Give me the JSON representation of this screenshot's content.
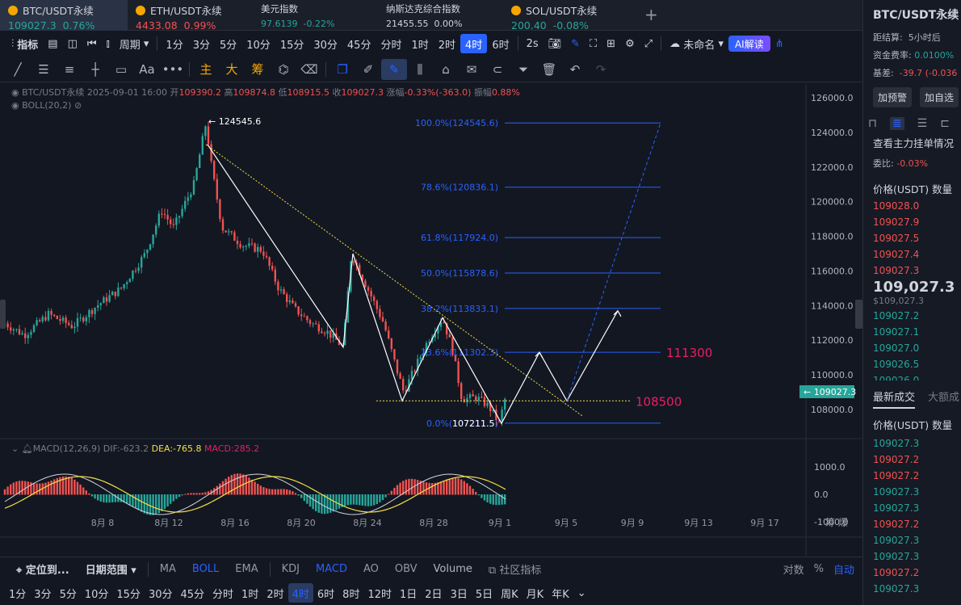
{
  "tickers": [
    {
      "name": "BTC/USDT永续",
      "price": "109027.3",
      "change": "0.76%",
      "dir": "up",
      "coin_color": "#f7a600"
    },
    {
      "name": "ETH/USDT永续",
      "price": "4433.08",
      "change": "0.99%",
      "dir": "dn",
      "coin_color": "#f7a600"
    },
    {
      "name": "美元指数",
      "price": "97.6139",
      "change": "-0.22%",
      "dir": "up",
      "coin_color": ""
    },
    {
      "name": "纳斯达克综合指数",
      "price": "21455.55",
      "change": "0.00%",
      "dir": "ne",
      "coin_color": ""
    },
    {
      "name": "SOL/USDT永续",
      "price": "200.40",
      "change": "-0.08%",
      "dir": "up",
      "coin_color": "#f7a600"
    }
  ],
  "add_tab": "+",
  "toolbar": {
    "indicators": "指标",
    "period_label": "周期",
    "timeframes": [
      "1分",
      "3分",
      "5分",
      "10分",
      "15分",
      "30分",
      "45分",
      "分时",
      "1时",
      "2时",
      "4时",
      "6时"
    ],
    "selected_timeframe": "4时",
    "interval": "2s",
    "layout_name": "未命名",
    "ai_label": "AI解读"
  },
  "drawtools": {
    "main": "主",
    "big": "大",
    "chips": "筹"
  },
  "legend": {
    "symbol": "BTC/USDT永续",
    "datetime": "2025-09-01 16:00",
    "open_label": "开",
    "open": "109390.2",
    "high_label": "高",
    "high": "109874.8",
    "low_label": "低",
    "low": "108915.5",
    "close_label": "收",
    "close": "109027.3",
    "change_label": "涨幅",
    "change": "-0.33%(-363.0)",
    "amp_label": "振幅",
    "amp": "0.88%",
    "boll": "BOLL(20,2)"
  },
  "macd_legend": {
    "name": "MACD(12,26,9)",
    "dif": "DIF:-623.2",
    "dea": "DEA:-765.8",
    "macd": "MACD:285.2"
  },
  "price_axis": [
    "126000.0",
    "124000.0",
    "122000.0",
    "120000.0",
    "118000.0",
    "116000.0",
    "114000.0",
    "112000.0",
    "110000.0",
    "108000.0"
  ],
  "current_price_tag": "109027.3",
  "macd_axis": [
    "1000.0",
    "0.0",
    "-1000.0"
  ],
  "date_axis": [
    "8月 8",
    "8月 12",
    "8月 16",
    "8月 20",
    "8月 24",
    "8月 28",
    "9月 1",
    "9月 5",
    "9月 9",
    "9月 13",
    "9月 17"
  ],
  "axis_corner": "筹 爆",
  "annotations": {
    "high_label": "← 124545.6",
    "low_label": "107211.5",
    "level_111300": "111300",
    "level_108500": "108500"
  },
  "fib_levels": [
    {
      "label": "100.0%(124545.6)",
      "price": 124545.6
    },
    {
      "label": "78.6%(120836.1)",
      "price": 120836.1
    },
    {
      "label": "61.8%(117924.0)",
      "price": 117924.0
    },
    {
      "label": "50.0%(115878.6)",
      "price": 115878.6
    },
    {
      "label": "38.2%(113833.1)",
      "price": 113833.1
    },
    {
      "label": "23.6%(111302.3)",
      "price": 111302.3
    },
    {
      "label": "0.0%(107211.5)",
      "price": 107211.5
    }
  ],
  "colors": {
    "up": "#26a69a",
    "down": "#ef5350",
    "accent": "#2962ff",
    "level_text": "#e91e63"
  },
  "bottom_bar1": {
    "locate": "定位到...",
    "date_range": "日期范围",
    "indicators": [
      "MA",
      "BOLL",
      "EMA",
      "KDJ",
      "MACD",
      "AO",
      "OBV",
      "Volume"
    ],
    "active": [
      "BOLL",
      "MACD"
    ],
    "community": "社区指标",
    "log": "对数",
    "pct": "%",
    "auto": "自动"
  },
  "bottom_bar2": [
    "1分",
    "3分",
    "5分",
    "10分",
    "15分",
    "30分",
    "45分",
    "分时",
    "1时",
    "2时",
    "4时",
    "6时",
    "8时",
    "12时",
    "1日",
    "2日",
    "3日",
    "5日",
    "周K",
    "月K",
    "年K"
  ],
  "right_panel": {
    "title": "BTC/USDT永续",
    "settle_label": "距结算:",
    "settle_val": "5小时后",
    "fund_label": "资金费率:",
    "fund_val": "0.0100%",
    "basis_label": "基差:",
    "basis_val": "-39.7 (-0.036",
    "alert_btn": "加预警",
    "watch_btn": "加自选",
    "orders_title": "查看主力挂单情况",
    "ratio_label": "委比:",
    "ratio_val": "-0.03%",
    "ob_header": "价格(USDT)  数量",
    "asks": [
      "109028.0",
      "109027.9",
      "109027.5",
      "109027.4",
      "109027.3"
    ],
    "mid_price": "109,027.3",
    "mid_sub": "$109,027.3",
    "bids": [
      "109027.2",
      "109027.1",
      "109027.0",
      "109026.5",
      "109026.0"
    ],
    "trades_tab": "最新成交",
    "big_tab": "大额成",
    "trades_header": "价格(USDT)  数量",
    "trades": [
      {
        "p": "109027.3",
        "d": "up"
      },
      {
        "p": "109027.2",
        "d": "dn"
      },
      {
        "p": "109027.2",
        "d": "dn"
      },
      {
        "p": "109027.3",
        "d": "up"
      },
      {
        "p": "109027.3",
        "d": "up"
      },
      {
        "p": "109027.2",
        "d": "dn"
      },
      {
        "p": "109027.3",
        "d": "up"
      },
      {
        "p": "109027.3",
        "d": "up"
      },
      {
        "p": "109027.2",
        "d": "dn"
      },
      {
        "p": "109027.3",
        "d": "up"
      }
    ]
  }
}
